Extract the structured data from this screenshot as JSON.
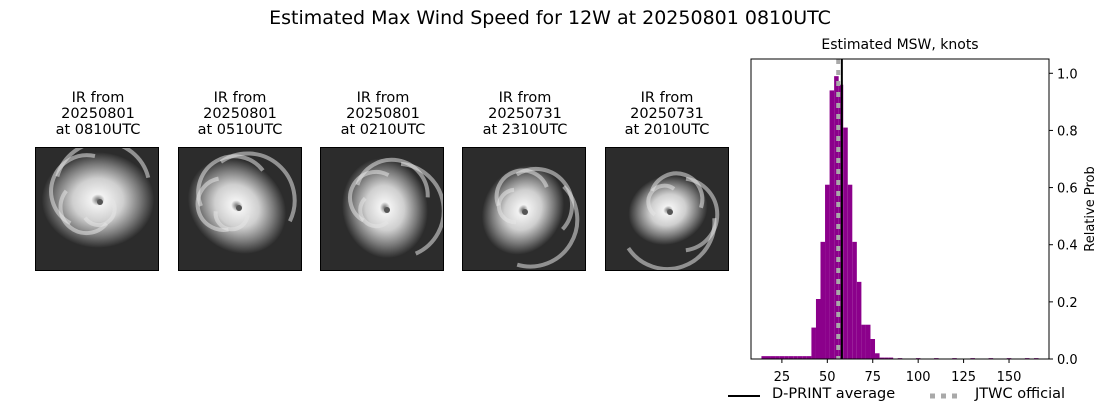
{
  "figure": {
    "title": "Estimated Max Wind Speed for 12W at 20250801 0810UTC"
  },
  "ir_panels": [
    {
      "title_line1": "IR from",
      "title_line2": "20250801",
      "title_line3": "at 0810UTC"
    },
    {
      "title_line1": "IR from",
      "title_line2": "20250801",
      "title_line3": "at 0510UTC"
    },
    {
      "title_line1": "IR from",
      "title_line2": "20250801",
      "title_line3": "at 0210UTC"
    },
    {
      "title_line1": "IR from",
      "title_line2": "20250731",
      "title_line3": "at 2310UTC"
    },
    {
      "title_line1": "IR from",
      "title_line2": "20250731",
      "title_line3": "at 2010UTC"
    }
  ],
  "colors": {
    "bar": "#8b008b",
    "dprint_line": "#000000",
    "jtwc_line": "#a9a9a9"
  },
  "chart_data": {
    "type": "bar",
    "title": "Estimated MSW, knots",
    "xlabel": "",
    "ylabel": "Relative Prob",
    "xlim": [
      8,
      172
    ],
    "ylim": [
      0,
      1.05
    ],
    "xticks": [
      25,
      50,
      75,
      100,
      125,
      150
    ],
    "yticks": [
      0.0,
      0.2,
      0.4,
      0.6,
      0.8,
      1.0
    ],
    "ytick_labels": [
      "0.0",
      "0.2",
      "0.4",
      "0.6",
      "0.8",
      "1.0"
    ],
    "y_axis_side": "right",
    "bin_width": 2.5,
    "bins": [
      {
        "x": 15,
        "p": 0.01
      },
      {
        "x": 17.5,
        "p": 0.01
      },
      {
        "x": 20,
        "p": 0.01
      },
      {
        "x": 22.5,
        "p": 0.01
      },
      {
        "x": 25,
        "p": 0.01
      },
      {
        "x": 27.5,
        "p": 0.01
      },
      {
        "x": 30,
        "p": 0.01
      },
      {
        "x": 32.5,
        "p": 0.01
      },
      {
        "x": 35,
        "p": 0.01
      },
      {
        "x": 37.5,
        "p": 0.01
      },
      {
        "x": 40,
        "p": 0.01
      },
      {
        "x": 42.5,
        "p": 0.11
      },
      {
        "x": 45,
        "p": 0.21
      },
      {
        "x": 47.5,
        "p": 0.41
      },
      {
        "x": 50,
        "p": 0.61
      },
      {
        "x": 52.5,
        "p": 0.94
      },
      {
        "x": 55,
        "p": 0.99
      },
      {
        "x": 57.5,
        "p": 0.96
      },
      {
        "x": 60,
        "p": 0.81
      },
      {
        "x": 62.5,
        "p": 0.61
      },
      {
        "x": 65,
        "p": 0.41
      },
      {
        "x": 67.5,
        "p": 0.27
      },
      {
        "x": 70,
        "p": 0.12
      },
      {
        "x": 72.5,
        "p": 0.12
      },
      {
        "x": 75,
        "p": 0.07
      },
      {
        "x": 77.5,
        "p": 0.02
      },
      {
        "x": 80,
        "p": 0.005
      },
      {
        "x": 82.5,
        "p": 0.005
      },
      {
        "x": 85,
        "p": 0.005
      },
      {
        "x": 90,
        "p": 0.003
      },
      {
        "x": 100,
        "p": 0.003
      },
      {
        "x": 110,
        "p": 0.003
      },
      {
        "x": 120,
        "p": 0.003
      },
      {
        "x": 130,
        "p": 0.003
      },
      {
        "x": 140,
        "p": 0.003
      },
      {
        "x": 150,
        "p": 0.003
      },
      {
        "x": 160,
        "p": 0.003
      },
      {
        "x": 165,
        "p": 0.003
      }
    ],
    "vlines": [
      {
        "name": "D-PRINT average",
        "x": 58,
        "style": "solid"
      },
      {
        "name": "JTWC official",
        "x": 56,
        "style": "dashed"
      }
    ]
  },
  "legend": {
    "dprint_label": "D-PRINT average",
    "jtwc_label": "JTWC official"
  }
}
